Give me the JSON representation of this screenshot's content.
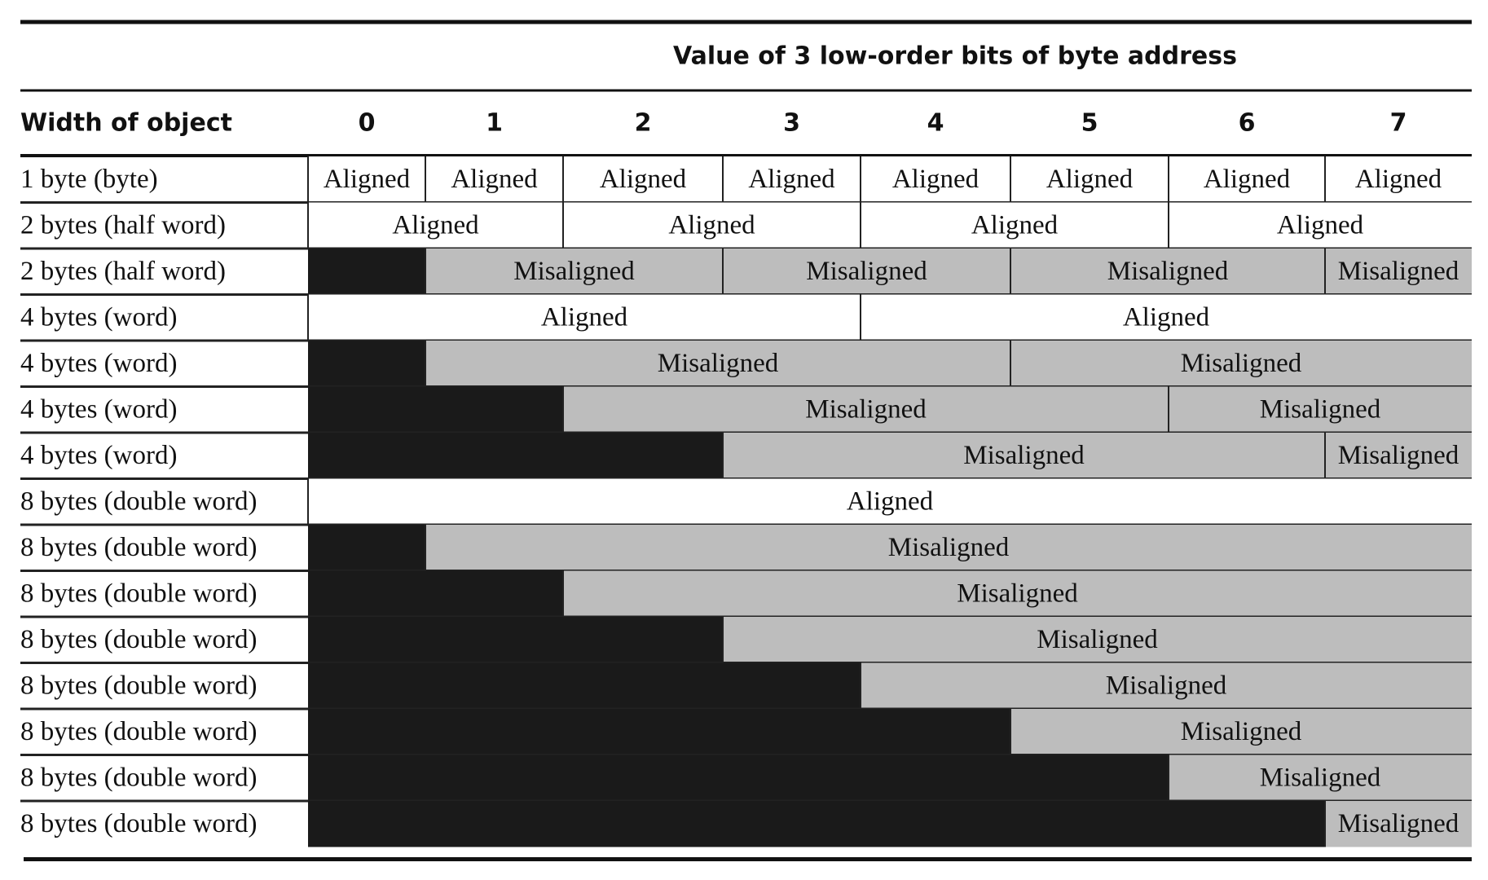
{
  "header": {
    "title": "Value of 3 low-order bits of byte address",
    "row_header": "Width of object",
    "columns": [
      "0",
      "1",
      "2",
      "3",
      "4",
      "5",
      "6",
      "7"
    ]
  },
  "rows": [
    {
      "label": "1 byte (byte)",
      "cells": [
        "Aligned",
        "Aligned",
        "Aligned",
        "Aligned",
        "Aligned",
        "Aligned",
        "Aligned",
        "Aligned"
      ]
    },
    {
      "label": "2 bytes (half word)",
      "cells": [
        "Aligned",
        "Aligned",
        "Aligned",
        "Aligned"
      ]
    },
    {
      "label": "2 bytes (half word)",
      "cells": [
        "Misaligned",
        "Misaligned",
        "Misaligned",
        "Misaligned"
      ]
    },
    {
      "label": "4 bytes (word)",
      "cells": [
        "Aligned",
        "Aligned"
      ]
    },
    {
      "label": "4 bytes (word)",
      "cells": [
        "Misaligned",
        "Misaligned"
      ]
    },
    {
      "label": "4 bytes (word)",
      "cells": [
        "Misaligned",
        "Misaligned"
      ]
    },
    {
      "label": "4 bytes (word)",
      "cells": [
        "Misaligned",
        "Misaligned"
      ]
    },
    {
      "label": "8 bytes (double word)",
      "cells": [
        "Aligned"
      ]
    },
    {
      "label": "8 bytes (double word)",
      "cells": [
        "Misaligned"
      ]
    },
    {
      "label": "8 bytes (double word)",
      "cells": [
        "Misaligned"
      ]
    },
    {
      "label": "8 bytes (double word)",
      "cells": [
        "Misaligned"
      ]
    },
    {
      "label": "8 bytes (double word)",
      "cells": [
        "Misaligned"
      ]
    },
    {
      "label": "8 bytes (double word)",
      "cells": [
        "Misaligned"
      ]
    },
    {
      "label": "8 bytes (double word)",
      "cells": [
        "Misaligned"
      ]
    },
    {
      "label": "8 bytes (double word)",
      "cells": [
        "Misaligned"
      ]
    }
  ]
}
